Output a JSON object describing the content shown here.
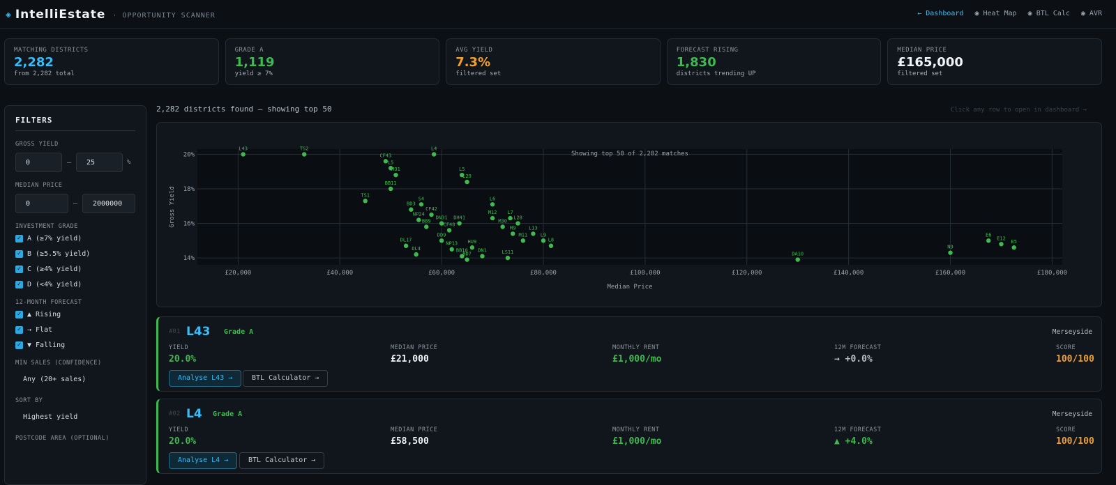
{
  "app": {
    "name": "IntelliEstate",
    "subtitle": "· OPPORTUNITY SCANNER",
    "logo_icon": "diamond-icon"
  },
  "nav": [
    {
      "label": "← Dashboard",
      "active": true
    },
    {
      "label": "◉ Heat Map",
      "active": false
    },
    {
      "label": "◉ BTL Calc",
      "active": false
    },
    {
      "label": "◉ AVR",
      "active": false
    }
  ],
  "stats": [
    {
      "label": "MATCHING DISTRICTS",
      "value": "2,282",
      "sub": "from 2,282 total",
      "color": "#38bdf8"
    },
    {
      "label": "GRADE A",
      "value": "1,119",
      "sub": "yield ≥ 7%",
      "color": "#3fb950"
    },
    {
      "label": "AVG YIELD",
      "value": "7.3%",
      "sub": "filtered set",
      "color": "#f0a030"
    },
    {
      "label": "FORECAST RISING",
      "value": "1,830",
      "sub": "districts trending UP",
      "color": "#3fb950"
    },
    {
      "label": "MEDIAN PRICE",
      "value": "£165,000",
      "sub": "filtered set",
      "color": "#f2f5f8"
    }
  ],
  "filters": {
    "title": "FILTERS",
    "gross_yield": {
      "label": "GROSS YIELD",
      "min": "0",
      "max": "25",
      "unit": "%"
    },
    "median_price": {
      "label": "MEDIAN PRICE",
      "min": "0",
      "max": "2000000"
    },
    "grade": {
      "label": "INVESTMENT GRADE",
      "options": [
        "A (≥7% yield)",
        "B (≥5.5% yield)",
        "C (≥4% yield)",
        "D (<4% yield)"
      ]
    },
    "forecast": {
      "label": "12-MONTH FORECAST",
      "options": [
        "▲ Rising",
        "→ Flat",
        "▼ Falling"
      ]
    },
    "min_sales": {
      "label": "MIN SALES (CONFIDENCE)",
      "value": "Any (20+ sales)"
    },
    "sort": {
      "label": "SORT BY",
      "value": "Highest yield"
    },
    "postcode": {
      "label": "POSTCODE AREA (OPTIONAL)"
    }
  },
  "results": {
    "heading": "2,282 districts found — showing top 50",
    "hint": "Click any row to open in dashboard →"
  },
  "chart_data": {
    "type": "scatter",
    "title": "Showing top 50 of 2,282 matches",
    "xlabel": "Median Price",
    "ylabel": "Gross Yield",
    "xlim": [
      12000,
      182000
    ],
    "ylim": [
      13.6,
      20.3
    ],
    "xticks": [
      "£20,000",
      "£40,000",
      "£60,000",
      "£80,000",
      "£100,000",
      "£120,000",
      "£140,000",
      "£160,000",
      "£180,000"
    ],
    "yticks": [
      "14%",
      "16%",
      "18%",
      "20%"
    ],
    "grid": true,
    "point_color": "#3fb950",
    "points": [
      {
        "label": "L43",
        "x": 21000,
        "y": 20.0
      },
      {
        "label": "TS2",
        "x": 33000,
        "y": 20.0
      },
      {
        "label": "L4",
        "x": 58500,
        "y": 20.0
      },
      {
        "label": "CF43",
        "x": 49000,
        "y": 19.6
      },
      {
        "label": "L5",
        "x": 50000,
        "y": 19.2
      },
      {
        "label": "M31",
        "x": 51000,
        "y": 18.8
      },
      {
        "label": "L5",
        "x": 64000,
        "y": 18.8
      },
      {
        "label": "L29",
        "x": 65000,
        "y": 18.4
      },
      {
        "label": "BB11",
        "x": 50000,
        "y": 18.0
      },
      {
        "label": "TS1",
        "x": 45000,
        "y": 17.3
      },
      {
        "label": "S4",
        "x": 56000,
        "y": 17.1
      },
      {
        "label": "L6",
        "x": 70000,
        "y": 17.1
      },
      {
        "label": "BD3",
        "x": 54000,
        "y": 16.8
      },
      {
        "label": "CF42",
        "x": 58000,
        "y": 16.5
      },
      {
        "label": "NP24",
        "x": 55500,
        "y": 16.2
      },
      {
        "label": "DN31",
        "x": 60000,
        "y": 16.0
      },
      {
        "label": "DH41",
        "x": 63500,
        "y": 16.0
      },
      {
        "label": "M12",
        "x": 70000,
        "y": 16.3
      },
      {
        "label": "L7",
        "x": 73500,
        "y": 16.3
      },
      {
        "label": "L28",
        "x": 75000,
        "y": 16.0
      },
      {
        "label": "M30",
        "x": 72000,
        "y": 15.8
      },
      {
        "label": "BB9",
        "x": 57000,
        "y": 15.8
      },
      {
        "label": "CF48",
        "x": 61500,
        "y": 15.6
      },
      {
        "label": "M9",
        "x": 74000,
        "y": 15.4
      },
      {
        "label": "L13",
        "x": 78000,
        "y": 15.4
      },
      {
        "label": "DD9",
        "x": 60000,
        "y": 15.0
      },
      {
        "label": "M11",
        "x": 76000,
        "y": 15.0
      },
      {
        "label": "L9",
        "x": 80000,
        "y": 15.0
      },
      {
        "label": "L8",
        "x": 81500,
        "y": 14.7
      },
      {
        "label": "DL17",
        "x": 53000,
        "y": 14.7
      },
      {
        "label": "NP13",
        "x": 62000,
        "y": 14.5
      },
      {
        "label": "HU9",
        "x": 66000,
        "y": 14.6
      },
      {
        "label": "DL4",
        "x": 55000,
        "y": 14.2
      },
      {
        "label": "BB10",
        "x": 64000,
        "y": 14.1
      },
      {
        "label": "DN1",
        "x": 68000,
        "y": 14.1
      },
      {
        "label": "BD7",
        "x": 65000,
        "y": 13.9
      },
      {
        "label": "LS11",
        "x": 73000,
        "y": 14.0
      },
      {
        "label": "DA10",
        "x": 130000,
        "y": 13.9
      },
      {
        "label": "N9",
        "x": 160000,
        "y": 14.3
      },
      {
        "label": "E6",
        "x": 167500,
        "y": 15.0
      },
      {
        "label": "E12",
        "x": 170000,
        "y": 14.8
      },
      {
        "label": "E5",
        "x": 172500,
        "y": 14.6
      }
    ]
  },
  "cards": [
    {
      "rank": "#01",
      "code": "L43",
      "grade": "Grade A",
      "region": "Merseyside",
      "yield_label": "YIELD",
      "yield": "20.0%",
      "price_label": "MEDIAN PRICE",
      "price": "£21,000",
      "rent_label": "MONTHLY RENT",
      "rent": "£1,000/mo",
      "forecast_label": "12M FORECAST",
      "forecast": "→ +0.0%",
      "score_label": "SCORE",
      "score": "100/100",
      "analyse": "Analyse L43 →",
      "btl": "BTL Calculator →"
    },
    {
      "rank": "#02",
      "code": "L4",
      "grade": "Grade A",
      "region": "Merseyside",
      "yield_label": "YIELD",
      "yield": "20.0%",
      "price_label": "MEDIAN PRICE",
      "price": "£58,500",
      "rent_label": "MONTHLY RENT",
      "rent": "£1,000/mo",
      "forecast_label": "12M FORECAST",
      "forecast": "▲ +4.0%",
      "score_label": "SCORE",
      "score": "100/100",
      "analyse": "Analyse L4 →",
      "btl": "BTL Calculator →"
    }
  ]
}
